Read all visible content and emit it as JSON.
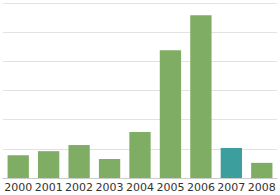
{
  "chart_data": {
    "type": "bar",
    "categories": [
      "2000",
      "2001",
      "2002",
      "2003",
      "2004",
      "2005",
      "2006",
      "2007",
      "2008"
    ],
    "values": [
      0.78,
      0.92,
      1.13,
      0.65,
      1.58,
      4.38,
      5.58,
      1.03,
      0.52
    ],
    "colors": [
      "#7fad63",
      "#7fad63",
      "#7fad63",
      "#7fad63",
      "#7fad63",
      "#7fad63",
      "#7fad63",
      "#3c9f9d",
      "#7fad63"
    ],
    "ylim": [
      0,
      6
    ],
    "yticks": [
      0,
      1,
      2,
      3,
      4,
      5,
      6
    ],
    "grid": true,
    "tick_labels": "x"
  }
}
